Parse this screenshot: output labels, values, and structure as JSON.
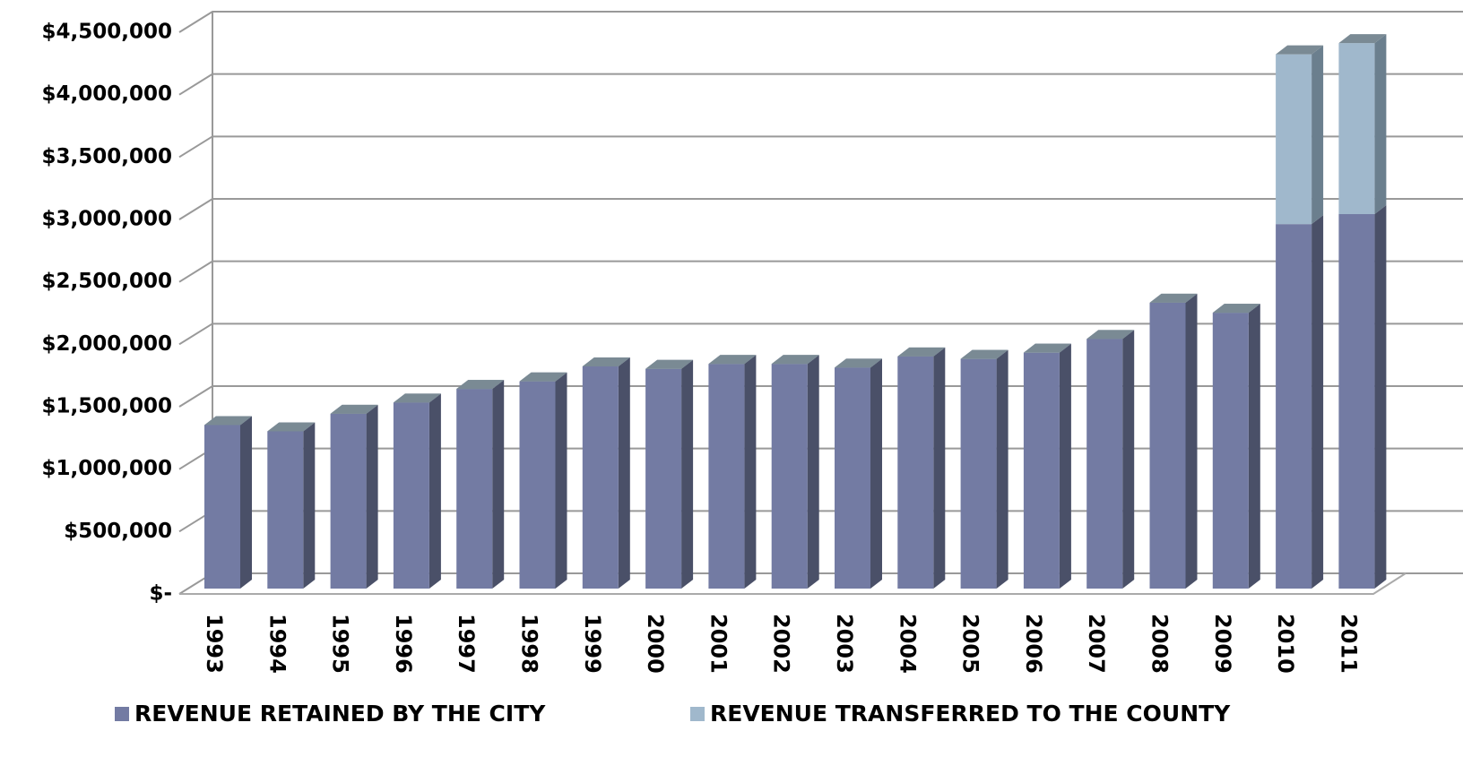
{
  "chart_data": {
    "type": "bar3d_stacked",
    "categories": [
      "1993",
      "1994",
      "1995",
      "1996",
      "1997",
      "1998",
      "1999",
      "2000",
      "2001",
      "2002",
      "2003",
      "2004",
      "2005",
      "2006",
      "2007",
      "2008",
      "2009",
      "2010",
      "2011"
    ],
    "series": [
      {
        "name": "REVENUE RETAINED BY THE CITY",
        "color": "#737ba3",
        "values": [
          1310000,
          1260000,
          1400000,
          1490000,
          1600000,
          1660000,
          1780000,
          1760000,
          1800000,
          1800000,
          1770000,
          1860000,
          1840000,
          1890000,
          2000000,
          2290000,
          2210000,
          2920000,
          3000000
        ]
      },
      {
        "name": "REVENUE TRANSFERRED TO THE COUNTY",
        "color": "#a0b8cc",
        "values": [
          0,
          0,
          0,
          0,
          0,
          0,
          0,
          0,
          0,
          0,
          0,
          0,
          0,
          0,
          0,
          0,
          0,
          1360000,
          1370000
        ]
      }
    ],
    "ylim": [
      0,
      4500000
    ],
    "yticks": [
      {
        "value": 0,
        "label": "$-"
      },
      {
        "value": 500000,
        "label": "$500,000"
      },
      {
        "value": 1000000,
        "label": "$1,000,000"
      },
      {
        "value": 1500000,
        "label": "$1,500,000"
      },
      {
        "value": 2000000,
        "label": "$2,000,000"
      },
      {
        "value": 2500000,
        "label": "$2,500,000"
      },
      {
        "value": 3000000,
        "label": "$3,000,000"
      },
      {
        "value": 3500000,
        "label": "$3,500,000"
      },
      {
        "value": 4000000,
        "label": "$4,000,000"
      },
      {
        "value": 4500000,
        "label": "$4,500,000"
      }
    ],
    "grid": true,
    "legend": "bottom"
  }
}
